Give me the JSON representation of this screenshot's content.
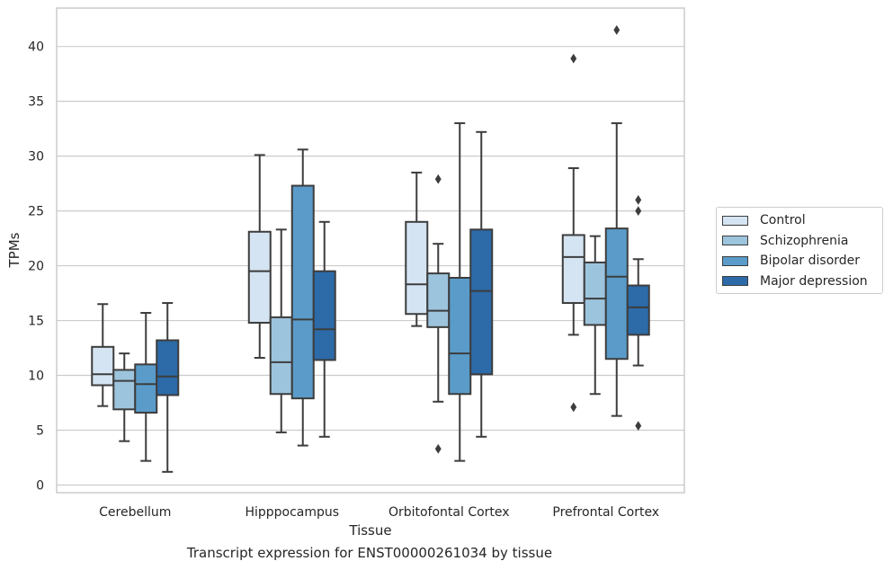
{
  "chart_data": {
    "type": "box",
    "caption": "Transcript expression for ENST00000261034 by tissue",
    "xlabel": "Tissue",
    "ylabel": "TPMs",
    "ylim": [
      -0.7,
      43.5
    ],
    "yticks": [
      0,
      5,
      10,
      15,
      20,
      25,
      30,
      35,
      40
    ],
    "grid": true,
    "legend_position": "right",
    "categories": [
      "Cerebellum",
      "Hipppocampus",
      "Orbitofontal Cortex",
      "Prefrontal Cortex"
    ],
    "series": [
      {
        "name": "Control",
        "color": "#d4e4f2",
        "boxes": [
          {
            "whislo": 7.2,
            "q1": 9.1,
            "med": 10.1,
            "q3": 12.6,
            "whishi": 16.5,
            "fliers": []
          },
          {
            "whislo": 11.6,
            "q1": 14.8,
            "med": 19.5,
            "q3": 23.1,
            "whishi": 30.1,
            "fliers": []
          },
          {
            "whislo": 14.5,
            "q1": 15.6,
            "med": 18.3,
            "q3": 24.0,
            "whishi": 28.5,
            "fliers": []
          },
          {
            "whislo": 13.7,
            "q1": 16.6,
            "med": 20.8,
            "q3": 22.8,
            "whishi": 28.9,
            "fliers": [
              7.1,
              38.9
            ]
          }
        ]
      },
      {
        "name": "Schizophrenia",
        "color": "#9dc4dd",
        "boxes": [
          {
            "whislo": 4.0,
            "q1": 6.9,
            "med": 9.5,
            "q3": 10.5,
            "whishi": 12.0,
            "fliers": []
          },
          {
            "whislo": 4.8,
            "q1": 8.3,
            "med": 11.2,
            "q3": 15.3,
            "whishi": 23.3,
            "fliers": []
          },
          {
            "whislo": 7.6,
            "q1": 14.4,
            "med": 15.9,
            "q3": 19.3,
            "whishi": 22.0,
            "fliers": [
              3.3,
              27.9
            ]
          },
          {
            "whislo": 8.3,
            "q1": 14.6,
            "med": 17.0,
            "q3": 20.3,
            "whishi": 22.7,
            "fliers": []
          }
        ]
      },
      {
        "name": "Bipolar disorder",
        "color": "#5a9bc9",
        "boxes": [
          {
            "whislo": 2.2,
            "q1": 6.6,
            "med": 9.2,
            "q3": 11.0,
            "whishi": 15.7,
            "fliers": []
          },
          {
            "whislo": 3.6,
            "q1": 7.9,
            "med": 15.1,
            "q3": 27.3,
            "whishi": 30.6,
            "fliers": []
          },
          {
            "whislo": 2.2,
            "q1": 8.3,
            "med": 12.0,
            "q3": 18.9,
            "whishi": 33.0,
            "fliers": []
          },
          {
            "whislo": 6.3,
            "q1": 11.5,
            "med": 19.0,
            "q3": 23.4,
            "whishi": 33.0,
            "fliers": [
              41.5
            ]
          }
        ]
      },
      {
        "name": "Major depression",
        "color": "#2c6aa8",
        "boxes": [
          {
            "whislo": 1.2,
            "q1": 8.2,
            "med": 9.9,
            "q3": 13.2,
            "whishi": 16.6,
            "fliers": []
          },
          {
            "whislo": 4.4,
            "q1": 11.4,
            "med": 14.2,
            "q3": 19.5,
            "whishi": 24.0,
            "fliers": []
          },
          {
            "whislo": 4.4,
            "q1": 10.1,
            "med": 17.7,
            "q3": 23.3,
            "whishi": 32.2,
            "fliers": []
          },
          {
            "whislo": 10.9,
            "q1": 13.7,
            "med": 16.2,
            "q3": 18.2,
            "whishi": 20.6,
            "fliers": [
              5.4,
              25.0,
              26.0
            ]
          }
        ]
      }
    ]
  }
}
